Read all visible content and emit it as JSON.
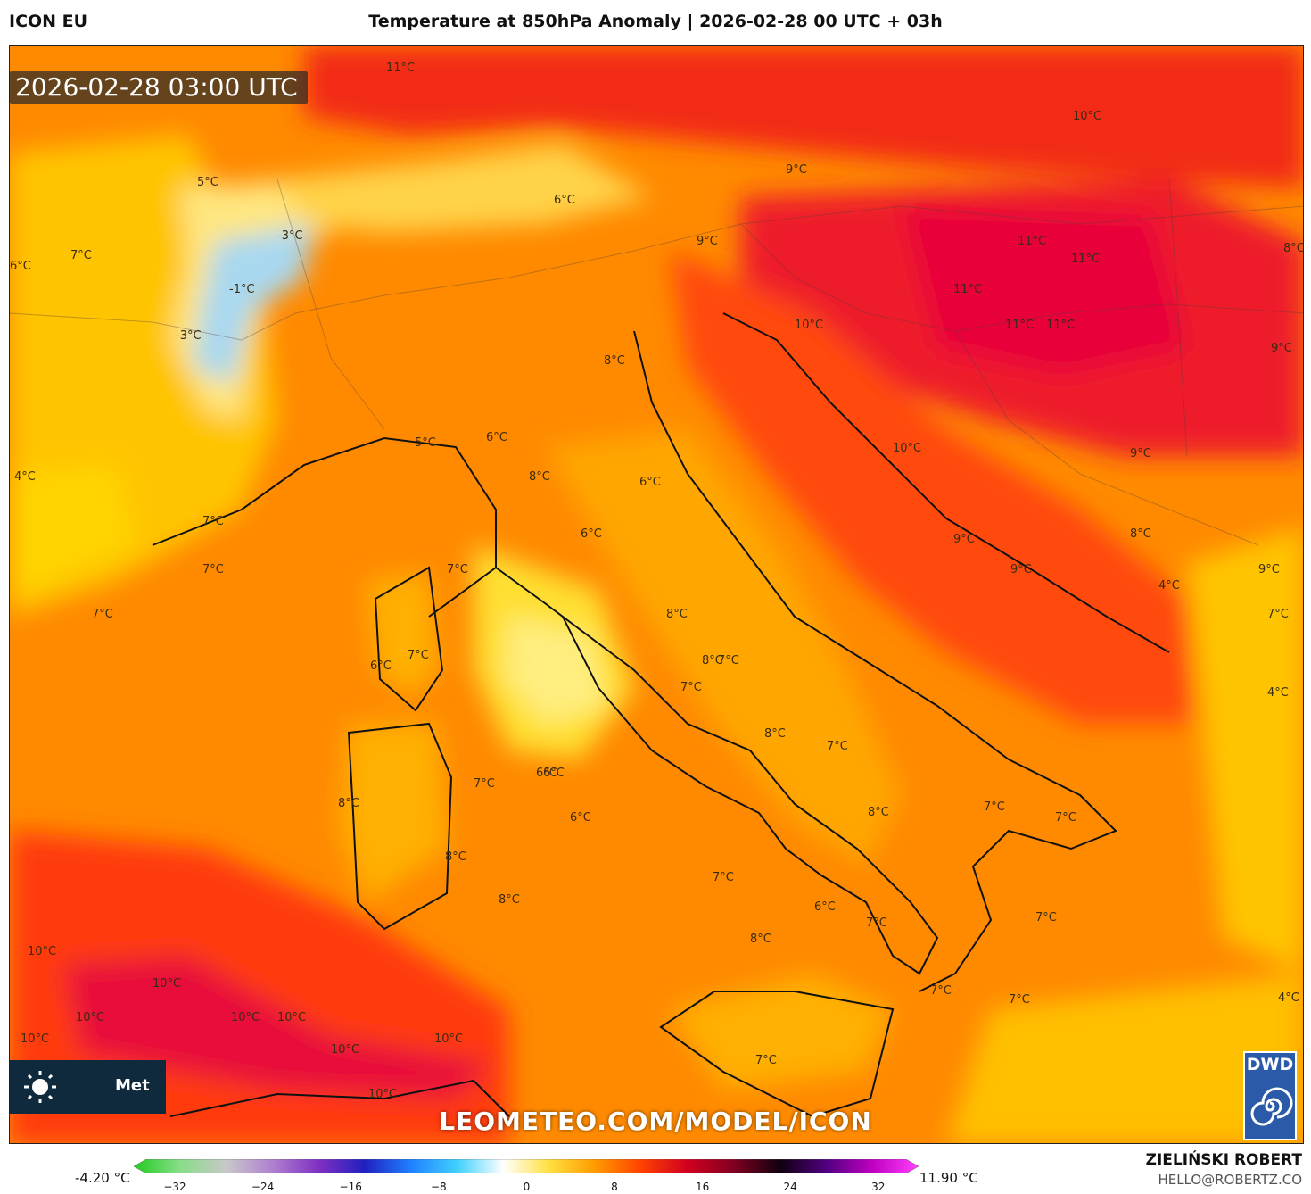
{
  "header": {
    "model": "ICON EU",
    "title": "Temperature at 850hPa Anomaly | 2026-02-28 00 UTC + 03h"
  },
  "map": {
    "valid_time": "2026-02-28 03:00 UTC",
    "watermark": "LEOMETEO.COM/MODEL/ICON",
    "promo_label": "Met",
    "logo_text": "DWD",
    "labels": [
      "11°C",
      "10°C",
      "9°C",
      "5°C",
      "-3°C",
      "6°C",
      "7°C",
      "6°C",
      "-1°C",
      "9°C",
      "11°C",
      "11°C",
      "11°C",
      "11°C",
      "11°C",
      "8°C",
      "-3°C",
      "10°C",
      "9°C",
      "8°C",
      "5°C",
      "6°C",
      "10°C",
      "4°C",
      "9°C",
      "8°C",
      "6°C",
      "7°C",
      "9°C",
      "8°C",
      "7°C",
      "6°C",
      "9°C",
      "9°C",
      "6°C",
      "7°C",
      "8°C",
      "8°C",
      "4°C",
      "6°C",
      "6°C",
      "7°C",
      "7°C",
      "7°C",
      "4°C",
      "8°C",
      "7°C",
      "6°C",
      "7°C",
      "7°C",
      "8°C",
      "8°C",
      "6°C",
      "7°C",
      "8°C",
      "7°C",
      "8°C",
      "7°C",
      "7°C",
      "7°C",
      "8°C",
      "7°C",
      "10°C",
      "10°C",
      "7°C",
      "7°C",
      "4°C",
      "10°C",
      "10°C",
      "10°C",
      "10°C",
      "10°C",
      "10°C",
      "7°C",
      "10°C"
    ]
  },
  "colorbar": {
    "min_label": "-4.20 °C",
    "max_label": "11.90 °C",
    "ticks": [
      "−32",
      "−24",
      "−16",
      "−8",
      "0",
      "8",
      "16",
      "24",
      "32"
    ],
    "colors": [
      "#22cc22",
      "#88dd88",
      "#c8c8c8",
      "#b080d0",
      "#8030c0",
      "#2020c0",
      "#2080ff",
      "#40d0ff",
      "#ffffff",
      "#ffe040",
      "#ff9a00",
      "#ff4000",
      "#d00020",
      "#800020",
      "#100010",
      "#500080",
      "#c000c0",
      "#ff40ff"
    ]
  },
  "credit": {
    "author": "ZIELIŃSKI ROBERT",
    "email": "HELLO@ROBERTZ.CO"
  }
}
